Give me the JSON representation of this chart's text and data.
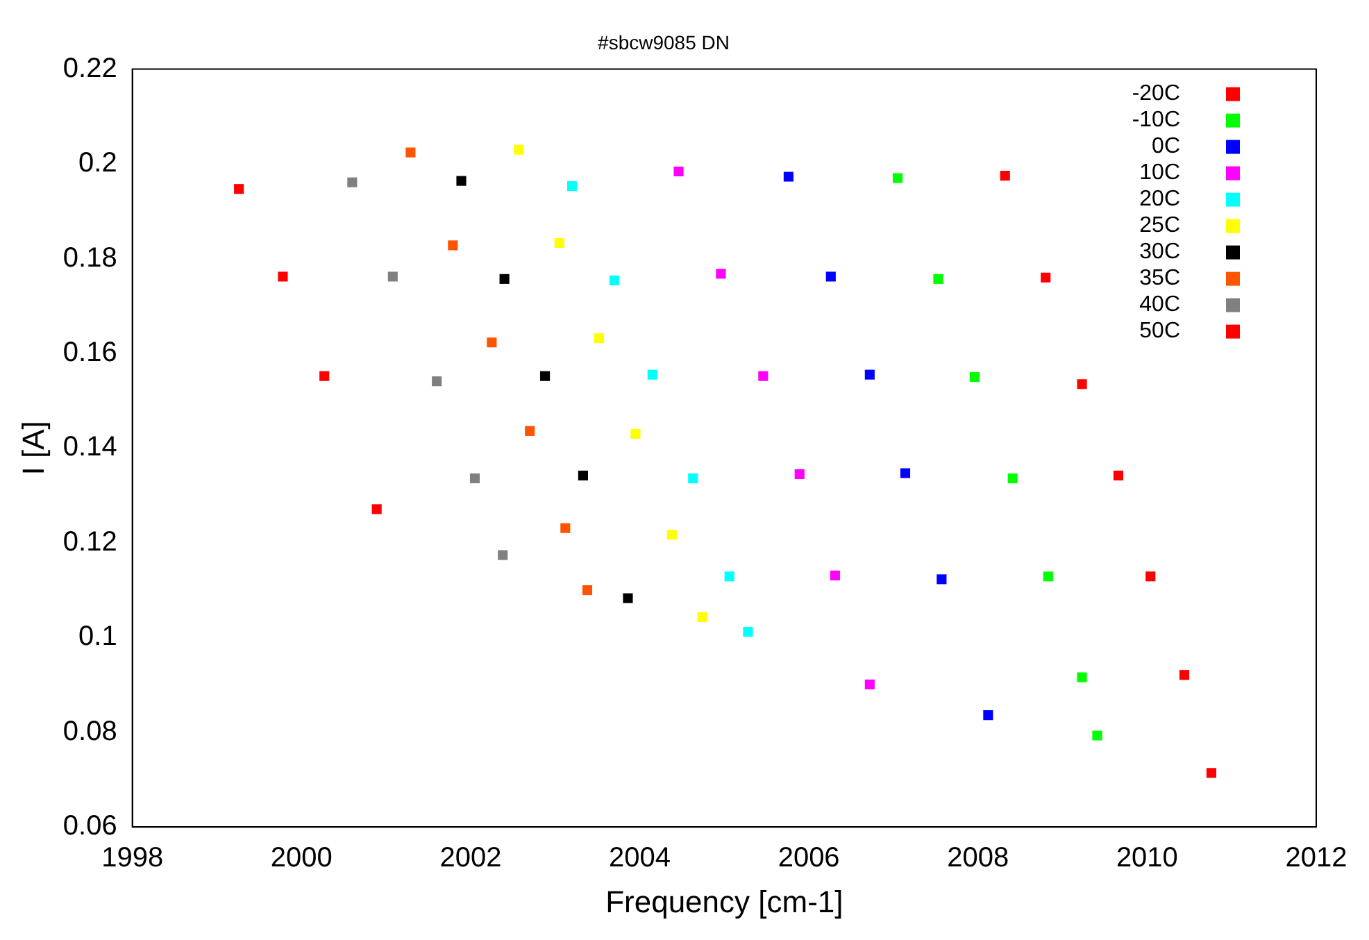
{
  "chart_data": {
    "type": "scatter",
    "title": "#sbcw9085 DN",
    "xlabel": "Frequency [cm-1]",
    "ylabel": "I [A]",
    "xlim": [
      1998,
      2012
    ],
    "xticks": [
      1998,
      2000,
      2002,
      2004,
      2006,
      2008,
      2010,
      2012
    ],
    "ylim": [
      0.06,
      0.22
    ],
    "yticks": [
      0.06,
      0.08,
      0.1,
      0.12,
      0.14,
      0.16,
      0.18,
      0.2,
      0.22
    ],
    "grid": false,
    "legend": "top right",
    "marker": "square",
    "series": [
      {
        "name": "-20C",
        "color": "#ff0000",
        "x": [
          2008.32,
          2008.8,
          2009.23,
          2009.66,
          2010.04,
          2010.44,
          2010.76
        ],
        "values": [
          0.1975,
          0.176,
          0.1535,
          0.1342,
          0.1129,
          0.0921,
          0.0714
        ]
      },
      {
        "name": "-10C",
        "color": "#00ff00",
        "x": [
          2007.05,
          2007.53,
          2007.96,
          2008.41,
          2008.83,
          2009.23,
          2009.41
        ],
        "values": [
          0.197,
          0.1757,
          0.155,
          0.1336,
          0.1129,
          0.0916,
          0.0793
        ]
      },
      {
        "name": "0C",
        "color": "#0000ff",
        "x": [
          2005.76,
          2006.26,
          2006.72,
          2007.14,
          2007.57,
          2008.12
        ],
        "values": [
          0.1973,
          0.1762,
          0.1555,
          0.1347,
          0.1123,
          0.0836
        ]
      },
      {
        "name": "10C",
        "color": "#ff00ff",
        "x": [
          2004.46,
          2004.96,
          2005.46,
          2005.89,
          2006.31,
          2006.72
        ],
        "values": [
          0.1984,
          0.1768,
          0.1552,
          0.1345,
          0.1131,
          0.0901
        ]
      },
      {
        "name": "20C",
        "color": "#00ffff",
        "x": [
          2003.2,
          2003.7,
          2004.15,
          2004.63,
          2005.06,
          2005.28
        ],
        "values": [
          0.1953,
          0.1754,
          0.1555,
          0.1336,
          0.1129,
          0.1012
        ]
      },
      {
        "name": "25C",
        "color": "#ffff00",
        "x": [
          2002.57,
          2003.05,
          2003.52,
          2003.95,
          2004.38,
          2004.74
        ],
        "values": [
          0.203,
          0.1833,
          0.1632,
          0.143,
          0.1217,
          0.1043
        ]
      },
      {
        "name": "30C",
        "color": "#000000",
        "x": [
          2001.89,
          2002.4,
          2002.88,
          2003.33,
          2003.86
        ],
        "values": [
          0.1964,
          0.1757,
          0.1552,
          0.1342,
          0.1083
        ]
      },
      {
        "name": "35C",
        "color": "#ff5500",
        "x": [
          2001.29,
          2001.79,
          2002.25,
          2002.7,
          2003.12,
          2003.38
        ],
        "values": [
          0.2024,
          0.1828,
          0.1623,
          0.1436,
          0.1231,
          0.11
        ]
      },
      {
        "name": "40C",
        "color": "#808080",
        "x": [
          2000.6,
          2001.08,
          2001.6,
          2002.05,
          2002.38
        ],
        "values": [
          0.1961,
          0.1762,
          0.1541,
          0.1336,
          0.1174
        ]
      },
      {
        "name": "50C",
        "color": "#ff0000",
        "x": [
          1999.26,
          1999.78,
          2000.27,
          2000.89
        ],
        "values": [
          0.1947,
          0.1762,
          0.1552,
          0.1271
        ]
      }
    ]
  }
}
